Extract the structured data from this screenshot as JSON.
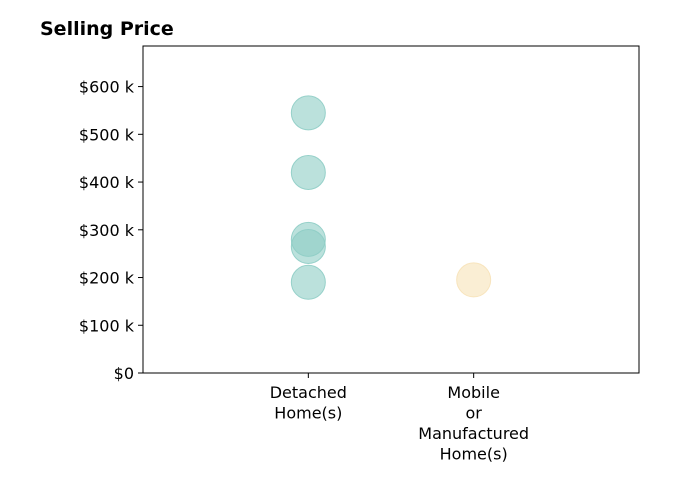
{
  "chart_data": {
    "type": "scatter",
    "title": "Selling Price",
    "xlabel": "",
    "ylabel": "",
    "categories": [
      "Detached\nHome(s)",
      "Mobile\nor\nManufactured\nHome(s)"
    ],
    "yticks": [
      0,
      100000,
      200000,
      300000,
      400000,
      500000,
      600000
    ],
    "ytick_labels": [
      "$0",
      "$100 k",
      "$200 k",
      "$300 k",
      "$400 k",
      "$500 k",
      "$600 k"
    ],
    "ylim": [
      0,
      685000
    ],
    "grid": false,
    "series": [
      {
        "category": "Detached\nHome(s)",
        "color": "#8ecdc5",
        "values": [
          545000,
          420000,
          280000,
          265000,
          190000
        ]
      },
      {
        "category": "Mobile\nor\nManufactured\nHome(s)",
        "color": "#f7e2b8",
        "values": [
          195000
        ]
      }
    ]
  }
}
